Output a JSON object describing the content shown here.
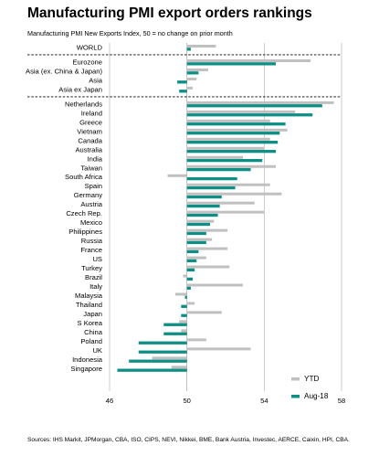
{
  "chart_data": {
    "type": "bar",
    "orientation": "horizontal",
    "title": "Manufacturing PMI export orders rankings",
    "subtitle": "Manufacturing PMI New Exports Index, 50 = no change on prior month",
    "sources": "Sources: IHS Markit, JPMorgan, CBA, ISO, CIPS, NEVI, Nikkei, BME, Bank Austria, Investec, AERCE, Caixin, HPI, CBA.",
    "xlim": [
      46,
      58
    ],
    "xticks": [
      46,
      50,
      54,
      58
    ],
    "legend_position": "bottom-right",
    "series": [
      {
        "name": "YTD",
        "color": "#c0c0c0"
      },
      {
        "name": "Aug-18",
        "color": "#0e8f86"
      }
    ],
    "groups": [
      {
        "rows": [
          {
            "label": "WORLD",
            "ytd": 51.5,
            "aug": 50.2
          }
        ]
      },
      {
        "rows": [
          {
            "label": "Eurozone",
            "ytd": 56.4,
            "aug": 54.6
          },
          {
            "label": "Asia (ex. China & Japan)",
            "ytd": 51.1,
            "aug": 50.6
          },
          {
            "label": "Asia",
            "ytd": 50.5,
            "aug": 49.5
          },
          {
            "label": "Asia ex Japan",
            "ytd": 50.3,
            "aug": 49.6
          }
        ]
      },
      {
        "rows": [
          {
            "label": "Netherlands",
            "ytd": 57.6,
            "aug": 57.0
          },
          {
            "label": "Ireland",
            "ytd": 55.6,
            "aug": 56.5
          },
          {
            "label": "Greece",
            "ytd": 54.3,
            "aug": 55.1
          },
          {
            "label": "Vietnam",
            "ytd": 55.2,
            "aug": 54.8
          },
          {
            "label": "Canada",
            "ytd": 54.3,
            "aug": 54.7
          },
          {
            "label": "Australia",
            "ytd": 54.0,
            "aug": 54.6
          },
          {
            "label": "India",
            "ytd": 52.9,
            "aug": 53.9
          },
          {
            "label": "Taiwan",
            "ytd": 54.6,
            "aug": 53.3
          },
          {
            "label": "South Africa",
            "ytd": 49.0,
            "aug": 52.6
          },
          {
            "label": "Spain",
            "ytd": 54.3,
            "aug": 52.5
          },
          {
            "label": "Germany",
            "ytd": 54.9,
            "aug": 51.8
          },
          {
            "label": "Austria",
            "ytd": 53.5,
            "aug": 51.7
          },
          {
            "label": "Czech Rep.",
            "ytd": 54.0,
            "aug": 51.6
          },
          {
            "label": "Mexico",
            "ytd": 51.4,
            "aug": 51.2
          },
          {
            "label": "Philippines",
            "ytd": 52.1,
            "aug": 51.0
          },
          {
            "label": "Russia",
            "ytd": 51.3,
            "aug": 51.0
          },
          {
            "label": "France",
            "ytd": 52.1,
            "aug": 50.6
          },
          {
            "label": "US",
            "ytd": 51.0,
            "aug": 50.5
          },
          {
            "label": "Turkey",
            "ytd": 52.2,
            "aug": 50.4
          },
          {
            "label": "Brazil",
            "ytd": 49.8,
            "aug": 50.3
          },
          {
            "label": "Italy",
            "ytd": 52.9,
            "aug": 50.2
          },
          {
            "label": "Malaysia",
            "ytd": 49.4,
            "aug": 49.9
          },
          {
            "label": "Thailand",
            "ytd": 50.4,
            "aug": 49.7
          },
          {
            "label": "Japan",
            "ytd": 51.8,
            "aug": 49.7
          },
          {
            "label": "S Korea",
            "ytd": 49.6,
            "aug": 48.8
          },
          {
            "label": "China",
            "ytd": 49.7,
            "aug": 48.8
          },
          {
            "label": "Poland",
            "ytd": 51.0,
            "aug": 47.5
          },
          {
            "label": "UK",
            "ytd": 53.3,
            "aug": 47.5
          },
          {
            "label": "Indonesia",
            "ytd": 48.2,
            "aug": 47.0
          },
          {
            "label": "Singapore",
            "ytd": 49.2,
            "aug": 46.4
          }
        ]
      }
    ]
  }
}
